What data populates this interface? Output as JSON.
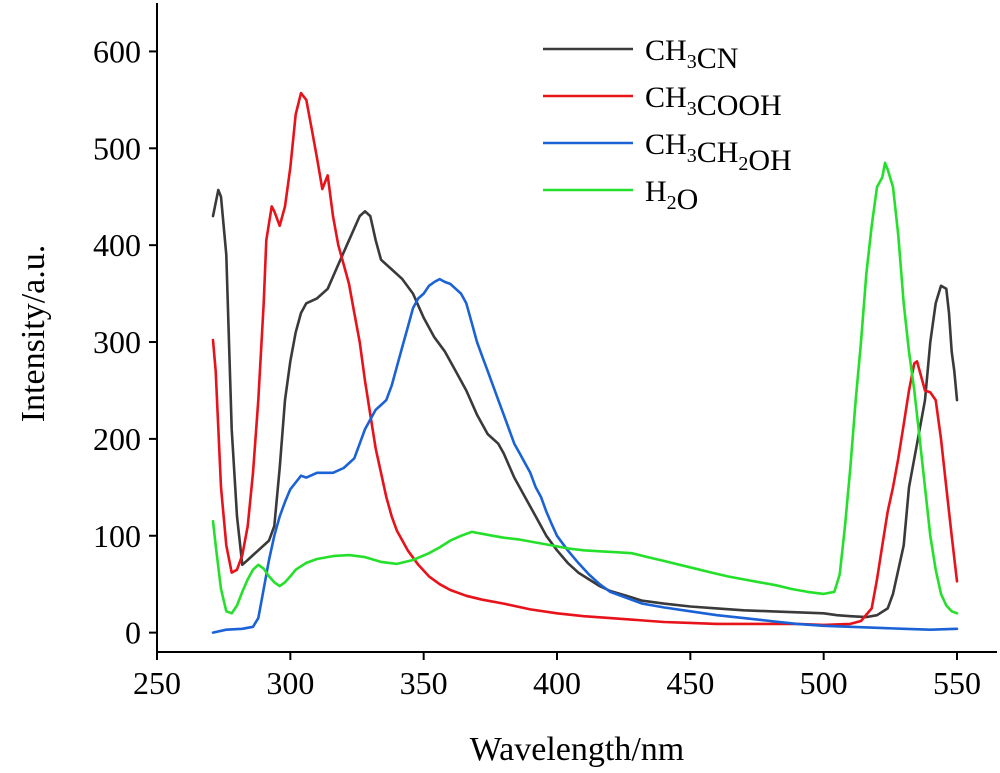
{
  "chart_data": {
    "type": "line",
    "xlabel": "Wavelength/nm",
    "ylabel": "Intensity/a.u.",
    "xlim": [
      250,
      565
    ],
    "ylim": [
      -20,
      650
    ],
    "xticks": [
      250,
      300,
      350,
      400,
      450,
      500,
      550
    ],
    "yticks": [
      0,
      100,
      200,
      300,
      400,
      500,
      600
    ],
    "grid": false,
    "legend_position": "top-right",
    "series": [
      {
        "name": "CH3CN",
        "legend": [
          {
            "t": "CH"
          },
          {
            "t": "3",
            "sub": true
          },
          {
            "t": "CN"
          }
        ],
        "color": "#3a3a3a",
        "points": [
          [
            271,
            430
          ],
          [
            273,
            457
          ],
          [
            274,
            450
          ],
          [
            276,
            390
          ],
          [
            278,
            210
          ],
          [
            280,
            120
          ],
          [
            282,
            70
          ],
          [
            284,
            75
          ],
          [
            288,
            85
          ],
          [
            292,
            95
          ],
          [
            294,
            110
          ],
          [
            296,
            170
          ],
          [
            298,
            240
          ],
          [
            300,
            280
          ],
          [
            302,
            310
          ],
          [
            304,
            330
          ],
          [
            306,
            340
          ],
          [
            310,
            345
          ],
          [
            314,
            355
          ],
          [
            318,
            380
          ],
          [
            322,
            405
          ],
          [
            326,
            430
          ],
          [
            328,
            435
          ],
          [
            330,
            430
          ],
          [
            332,
            405
          ],
          [
            334,
            385
          ],
          [
            338,
            375
          ],
          [
            342,
            365
          ],
          [
            346,
            350
          ],
          [
            350,
            325
          ],
          [
            354,
            305
          ],
          [
            358,
            290
          ],
          [
            362,
            270
          ],
          [
            366,
            250
          ],
          [
            370,
            225
          ],
          [
            374,
            205
          ],
          [
            378,
            195
          ],
          [
            380,
            185
          ],
          [
            384,
            160
          ],
          [
            388,
            140
          ],
          [
            392,
            120
          ],
          [
            396,
            100
          ],
          [
            400,
            85
          ],
          [
            404,
            72
          ],
          [
            408,
            62
          ],
          [
            412,
            55
          ],
          [
            416,
            48
          ],
          [
            420,
            43
          ],
          [
            426,
            38
          ],
          [
            432,
            33
          ],
          [
            440,
            30
          ],
          [
            450,
            27
          ],
          [
            460,
            25
          ],
          [
            470,
            23
          ],
          [
            480,
            22
          ],
          [
            490,
            21
          ],
          [
            500,
            20
          ],
          [
            505,
            18
          ],
          [
            510,
            17
          ],
          [
            516,
            16
          ],
          [
            520,
            18
          ],
          [
            524,
            25
          ],
          [
            526,
            40
          ],
          [
            530,
            90
          ],
          [
            532,
            150
          ],
          [
            536,
            210
          ],
          [
            538,
            240
          ],
          [
            540,
            300
          ],
          [
            542,
            340
          ],
          [
            544,
            358
          ],
          [
            546,
            355
          ],
          [
            547,
            330
          ],
          [
            548,
            290
          ],
          [
            549,
            270
          ],
          [
            550,
            240
          ]
        ]
      },
      {
        "name": "CH3COOH",
        "legend": [
          {
            "t": "CH"
          },
          {
            "t": "3",
            "sub": true
          },
          {
            "t": "COOH"
          }
        ],
        "color": "#e8121a",
        "points": [
          [
            271,
            302
          ],
          [
            272,
            270
          ],
          [
            274,
            150
          ],
          [
            276,
            90
          ],
          [
            278,
            62
          ],
          [
            280,
            65
          ],
          [
            282,
            80
          ],
          [
            284,
            110
          ],
          [
            286,
            165
          ],
          [
            288,
            240
          ],
          [
            290,
            340
          ],
          [
            291,
            405
          ],
          [
            293,
            440
          ],
          [
            294,
            435
          ],
          [
            296,
            420
          ],
          [
            298,
            440
          ],
          [
            300,
            480
          ],
          [
            302,
            535
          ],
          [
            304,
            557
          ],
          [
            306,
            550
          ],
          [
            308,
            520
          ],
          [
            310,
            490
          ],
          [
            312,
            458
          ],
          [
            314,
            472
          ],
          [
            316,
            430
          ],
          [
            318,
            400
          ],
          [
            320,
            380
          ],
          [
            322,
            360
          ],
          [
            324,
            330
          ],
          [
            326,
            300
          ],
          [
            328,
            260
          ],
          [
            330,
            225
          ],
          [
            332,
            190
          ],
          [
            334,
            165
          ],
          [
            336,
            140
          ],
          [
            338,
            120
          ],
          [
            340,
            105
          ],
          [
            344,
            85
          ],
          [
            348,
            70
          ],
          [
            352,
            58
          ],
          [
            356,
            50
          ],
          [
            360,
            44
          ],
          [
            366,
            38
          ],
          [
            372,
            34
          ],
          [
            380,
            30
          ],
          [
            390,
            24
          ],
          [
            400,
            20
          ],
          [
            410,
            17
          ],
          [
            420,
            15
          ],
          [
            430,
            13
          ],
          [
            440,
            11
          ],
          [
            450,
            10
          ],
          [
            460,
            9
          ],
          [
            470,
            9
          ],
          [
            480,
            9
          ],
          [
            490,
            9
          ],
          [
            500,
            8
          ],
          [
            510,
            9
          ],
          [
            514,
            12
          ],
          [
            518,
            25
          ],
          [
            520,
            55
          ],
          [
            522,
            90
          ],
          [
            524,
            125
          ],
          [
            526,
            150
          ],
          [
            528,
            180
          ],
          [
            530,
            215
          ],
          [
            532,
            250
          ],
          [
            534,
            278
          ],
          [
            535,
            280
          ],
          [
            536,
            270
          ],
          [
            538,
            250
          ],
          [
            540,
            248
          ],
          [
            542,
            240
          ],
          [
            544,
            200
          ],
          [
            546,
            150
          ],
          [
            548,
            100
          ],
          [
            550,
            53
          ]
        ]
      },
      {
        "name": "CH3CH2OH",
        "legend": [
          {
            "t": "CH"
          },
          {
            "t": "3",
            "sub": true
          },
          {
            "t": "CH"
          },
          {
            "t": "2",
            "sub": true
          },
          {
            "t": "OH"
          }
        ],
        "color": "#1a62d6",
        "points": [
          [
            271,
            0
          ],
          [
            276,
            3
          ],
          [
            282,
            4
          ],
          [
            286,
            6
          ],
          [
            288,
            15
          ],
          [
            290,
            45
          ],
          [
            292,
            75
          ],
          [
            294,
            100
          ],
          [
            296,
            120
          ],
          [
            298,
            135
          ],
          [
            300,
            148
          ],
          [
            302,
            155
          ],
          [
            304,
            162
          ],
          [
            306,
            160
          ],
          [
            310,
            165
          ],
          [
            316,
            165
          ],
          [
            320,
            170
          ],
          [
            324,
            180
          ],
          [
            326,
            195
          ],
          [
            328,
            210
          ],
          [
            330,
            220
          ],
          [
            332,
            230
          ],
          [
            334,
            235
          ],
          [
            336,
            240
          ],
          [
            338,
            255
          ],
          [
            340,
            275
          ],
          [
            342,
            295
          ],
          [
            344,
            315
          ],
          [
            346,
            335
          ],
          [
            348,
            345
          ],
          [
            350,
            350
          ],
          [
            352,
            358
          ],
          [
            354,
            362
          ],
          [
            356,
            365
          ],
          [
            358,
            362
          ],
          [
            360,
            360
          ],
          [
            362,
            355
          ],
          [
            364,
            350
          ],
          [
            366,
            340
          ],
          [
            368,
            320
          ],
          [
            370,
            300
          ],
          [
            372,
            285
          ],
          [
            374,
            270
          ],
          [
            376,
            255
          ],
          [
            378,
            240
          ],
          [
            380,
            225
          ],
          [
            382,
            210
          ],
          [
            384,
            195
          ],
          [
            386,
            185
          ],
          [
            388,
            175
          ],
          [
            390,
            165
          ],
          [
            392,
            150
          ],
          [
            394,
            140
          ],
          [
            396,
            125
          ],
          [
            398,
            112
          ],
          [
            400,
            100
          ],
          [
            404,
            85
          ],
          [
            408,
            72
          ],
          [
            412,
            60
          ],
          [
            416,
            50
          ],
          [
            420,
            42
          ],
          [
            426,
            36
          ],
          [
            432,
            30
          ],
          [
            440,
            26
          ],
          [
            450,
            22
          ],
          [
            460,
            18
          ],
          [
            470,
            15
          ],
          [
            480,
            12
          ],
          [
            490,
            9
          ],
          [
            500,
            7
          ],
          [
            510,
            6
          ],
          [
            520,
            5
          ],
          [
            530,
            4
          ],
          [
            540,
            3
          ],
          [
            550,
            4
          ]
        ]
      },
      {
        "name": "H2O",
        "legend": [
          {
            "t": "H"
          },
          {
            "t": "2",
            "sub": true
          },
          {
            "t": "O"
          }
        ],
        "color": "#25e02a",
        "points": [
          [
            271,
            115
          ],
          [
            272,
            90
          ],
          [
            274,
            45
          ],
          [
            276,
            22
          ],
          [
            278,
            20
          ],
          [
            280,
            28
          ],
          [
            282,
            42
          ],
          [
            284,
            55
          ],
          [
            286,
            65
          ],
          [
            288,
            70
          ],
          [
            290,
            66
          ],
          [
            292,
            58
          ],
          [
            294,
            52
          ],
          [
            296,
            48
          ],
          [
            298,
            52
          ],
          [
            300,
            58
          ],
          [
            302,
            65
          ],
          [
            306,
            72
          ],
          [
            310,
            76
          ],
          [
            316,
            79
          ],
          [
            322,
            80
          ],
          [
            328,
            78
          ],
          [
            334,
            73
          ],
          [
            340,
            71
          ],
          [
            346,
            75
          ],
          [
            352,
            82
          ],
          [
            356,
            88
          ],
          [
            360,
            95
          ],
          [
            364,
            100
          ],
          [
            368,
            104
          ],
          [
            372,
            102
          ],
          [
            376,
            100
          ],
          [
            380,
            98
          ],
          [
            386,
            96
          ],
          [
            392,
            93
          ],
          [
            398,
            90
          ],
          [
            404,
            87
          ],
          [
            410,
            85
          ],
          [
            416,
            84
          ],
          [
            422,
            83
          ],
          [
            428,
            82
          ],
          [
            434,
            78
          ],
          [
            440,
            74
          ],
          [
            446,
            70
          ],
          [
            452,
            66
          ],
          [
            458,
            62
          ],
          [
            464,
            58
          ],
          [
            470,
            55
          ],
          [
            476,
            52
          ],
          [
            482,
            49
          ],
          [
            488,
            45
          ],
          [
            494,
            42
          ],
          [
            500,
            40
          ],
          [
            504,
            42
          ],
          [
            506,
            60
          ],
          [
            508,
            110
          ],
          [
            510,
            170
          ],
          [
            512,
            240
          ],
          [
            514,
            300
          ],
          [
            516,
            370
          ],
          [
            518,
            420
          ],
          [
            520,
            460
          ],
          [
            522,
            470
          ],
          [
            523,
            485
          ],
          [
            524,
            478
          ],
          [
            526,
            460
          ],
          [
            528,
            410
          ],
          [
            530,
            340
          ],
          [
            532,
            290
          ],
          [
            534,
            250
          ],
          [
            536,
            200
          ],
          [
            538,
            150
          ],
          [
            540,
            100
          ],
          [
            542,
            65
          ],
          [
            544,
            40
          ],
          [
            546,
            28
          ],
          [
            548,
            22
          ],
          [
            550,
            20
          ]
        ]
      }
    ]
  }
}
